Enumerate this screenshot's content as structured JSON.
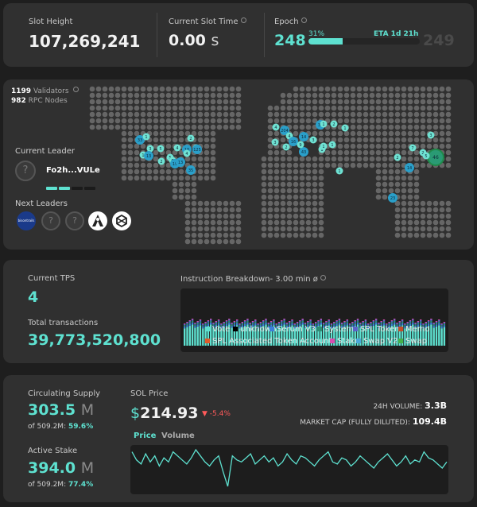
{
  "header": {
    "slot_height": {
      "label": "Slot Height",
      "value": "107,269,241"
    },
    "slot_time": {
      "label": "Current Slot Time",
      "value": "0.00",
      "unit": "s"
    },
    "epoch": {
      "label": "Epoch",
      "value": "248",
      "percent_label": "31%",
      "progress": 0.31,
      "eta": "ETA 1d 21h",
      "next": "249"
    }
  },
  "network": {
    "validators_count": "1199",
    "validators_label": "Validators",
    "rpc_count": "982",
    "rpc_label": "RPC Nodes",
    "current_leader_label": "Current Leader",
    "current_leader_name": "Fo2h...VULe",
    "next_leaders_label": "Next Leaders",
    "next_leaders": [
      {
        "icon": "bison-logo",
        "text": "bisontrails"
      },
      {
        "icon": "unknown-question-icon"
      },
      {
        "icon": "unknown-question-icon"
      },
      {
        "icon": "monk-logo"
      },
      {
        "icon": "hexagon-logo"
      }
    ],
    "map_clusters": [
      "33",
      "1",
      "5",
      "3",
      "4",
      "1",
      "13",
      "5",
      "6",
      "2",
      "10",
      "4",
      "3",
      "19",
      "13",
      "2",
      "125",
      "35",
      "4",
      "3",
      "204",
      "4",
      "16",
      "43",
      "14",
      "34",
      "1",
      "2",
      "9",
      "3",
      "1",
      "2",
      "1",
      "1",
      "1",
      "46",
      "2",
      "14",
      "2",
      "7",
      "5",
      "23",
      "1",
      "3"
    ]
  },
  "tps": {
    "current_label": "Current TPS",
    "current_value": "4",
    "total_label": "Total transactions",
    "total_value": "39,773,520,800",
    "breakdown_label": "Instruction Breakdown- 3.00 min ø",
    "legend": [
      {
        "name": "Vote",
        "color": "#5ee1d0"
      },
      {
        "name": "unknown",
        "color": "#000000"
      },
      {
        "name": "Serum V3",
        "color": "#3b7fd9"
      },
      {
        "name": "System",
        "color": "#2c8f74"
      },
      {
        "name": "SPL Token",
        "color": "#5b63c9"
      },
      {
        "name": "Memo",
        "color": "#c44d2b"
      },
      {
        "name": "SPL Associated Token Account",
        "color": "#e05a2a"
      },
      {
        "name": "Stake",
        "color": "#d84fb0"
      },
      {
        "name": "Swap V2",
        "color": "#4aa7d9"
      },
      {
        "name": "Swap",
        "color": "#43b24a"
      }
    ]
  },
  "supply": {
    "circulating_label": "Circulating Supply",
    "circulating_value": "303.5",
    "circulating_unit": "M",
    "circulating_of": "of 509.2M:",
    "circulating_pct": "59.6%",
    "stake_label": "Active Stake",
    "stake_value": "394.0",
    "stake_unit": "M",
    "stake_of": "of 509.2M:",
    "stake_pct": "77.4%"
  },
  "price": {
    "label": "SOL Price",
    "currency": "$",
    "value": "214.93",
    "change": "-5.4%",
    "change_color": "#ff5a5a",
    "volume_label": "24H VOLUME:",
    "volume_value": "3.3B",
    "mcap_label": "MARKET CAP (FULLY DILUTED):",
    "mcap_value": "109.4B",
    "tab_price": "Price",
    "tab_volume": "Volume",
    "series": [
      62,
      58,
      56,
      61,
      57,
      60,
      55,
      59,
      57,
      62,
      60,
      58,
      56,
      59,
      63,
      60,
      57,
      55,
      58,
      60,
      52,
      45,
      60,
      58,
      57,
      59,
      61,
      56,
      58,
      60,
      57,
      59,
      55,
      57,
      61,
      58,
      56,
      60,
      59,
      57,
      55,
      58,
      60,
      62,
      57,
      56,
      59,
      58,
      55,
      57,
      60,
      58,
      56,
      54,
      57,
      59,
      61,
      58,
      55,
      57,
      60,
      56,
      58,
      57,
      62,
      59,
      58,
      56,
      54,
      57
    ]
  }
}
